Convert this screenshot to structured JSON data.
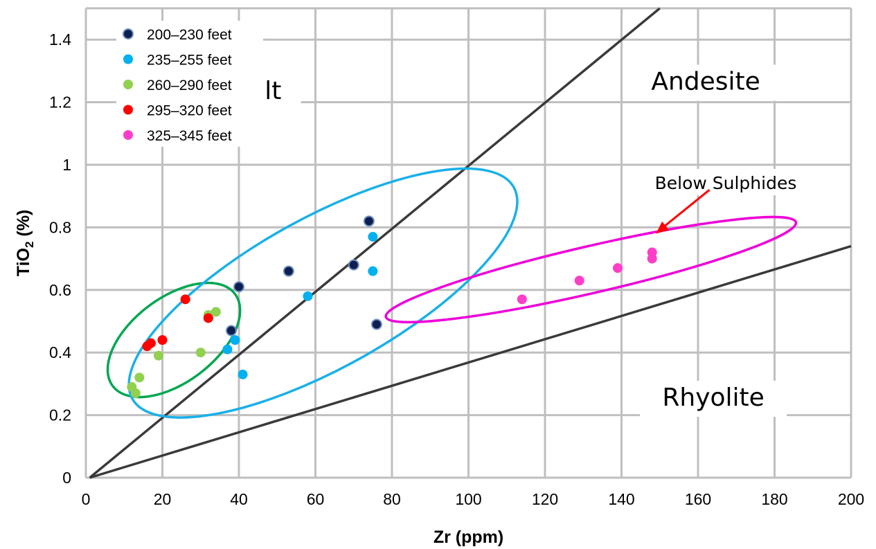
{
  "chart_data": {
    "type": "scatter",
    "xlabel": "Zr (ppm)",
    "ylabel": {
      "prefix": "TiO",
      "subscript": "2",
      "suffix": " (%)"
    },
    "xlim": [
      0,
      200
    ],
    "ylim": [
      0,
      1.5
    ],
    "x_ticks": [
      "0",
      "20",
      "40",
      "60",
      "80",
      "100",
      "120",
      "140",
      "160",
      "180",
      "200"
    ],
    "y_ticks": [
      "0",
      "0.2",
      "0.4",
      "0.6",
      "0.8",
      "1",
      "1.2",
      "1.4"
    ],
    "x_tick_values": [
      0,
      20,
      40,
      60,
      80,
      100,
      120,
      140,
      160,
      180,
      200
    ],
    "y_tick_values": [
      0,
      0.2,
      0.4,
      0.6,
      0.8,
      1.0,
      1.2,
      1.4
    ],
    "grid": true,
    "legend_position": "top-left",
    "series": [
      {
        "name": "200–230 feet",
        "color": "#0d1f4f",
        "outline": true,
        "points": [
          [
            40,
            0.61
          ],
          [
            53,
            0.66
          ],
          [
            70,
            0.68
          ],
          [
            74,
            0.82
          ],
          [
            76,
            0.49
          ],
          [
            38,
            0.47
          ]
        ]
      },
      {
        "name": "235–255 feet",
        "color": "#00b0f0",
        "points": [
          [
            37,
            0.41
          ],
          [
            39,
            0.44
          ],
          [
            41,
            0.33
          ],
          [
            58,
            0.58
          ],
          [
            75,
            0.77
          ],
          [
            75,
            0.66
          ]
        ]
      },
      {
        "name": "260–290 feet",
        "color": "#92d050",
        "points": [
          [
            12,
            0.29
          ],
          [
            13,
            0.27
          ],
          [
            14,
            0.32
          ],
          [
            19,
            0.39
          ],
          [
            30,
            0.4
          ],
          [
            32,
            0.52
          ],
          [
            34,
            0.53
          ]
        ]
      },
      {
        "name": "295–320 feet",
        "color": "#ff0000",
        "points": [
          [
            16,
            0.42
          ],
          [
            17,
            0.43
          ],
          [
            20,
            0.44
          ],
          [
            26,
            0.57
          ],
          [
            32,
            0.51
          ]
        ]
      },
      {
        "name": "325–345 feet",
        "color": "#ff3ec8",
        "points": [
          [
            114,
            0.57
          ],
          [
            129,
            0.63
          ],
          [
            139,
            0.67
          ],
          [
            148,
            0.7
          ],
          [
            148,
            0.72
          ]
        ]
      }
    ],
    "boundary_lines": [
      {
        "name": "basalt-andesite-boundary",
        "from": [
          1,
          0
        ],
        "to": [
          150,
          1.5
        ]
      },
      {
        "name": "andesite-rhyolite-boundary",
        "from": [
          1,
          0
        ],
        "to": [
          200,
          0.74
        ]
      }
    ],
    "regions": [
      {
        "label": "Basalt",
        "x": 41,
        "y": 1.21
      },
      {
        "label": "Andesite",
        "x": 162,
        "y": 1.24
      },
      {
        "label": "Rhyolite",
        "x": 164,
        "y": 0.23
      }
    ],
    "groupings": [
      {
        "name": "group-260-320-ellipse",
        "color": "#00a651",
        "center": [
          23,
          0.44
        ],
        "rx": 20,
        "ry": 0.135,
        "rotation_deg": -37
      },
      {
        "name": "group-200-255-ellipse",
        "color": "#1ab0e8",
        "center": [
          62,
          0.59
        ],
        "rx": 57,
        "ry": 0.24,
        "rotation_deg": -29
      },
      {
        "name": "group-325-345-ellipse",
        "color": "#ee00d8",
        "center": [
          132,
          0.665
        ],
        "rx": 55,
        "ry": 0.075,
        "rotation_deg": -13
      }
    ],
    "annotation": {
      "text": "Below Sulphides",
      "color": "#ff0000",
      "arrow_from": [
        163,
        0.92
      ],
      "arrow_to": [
        149,
        0.78
      ]
    }
  }
}
